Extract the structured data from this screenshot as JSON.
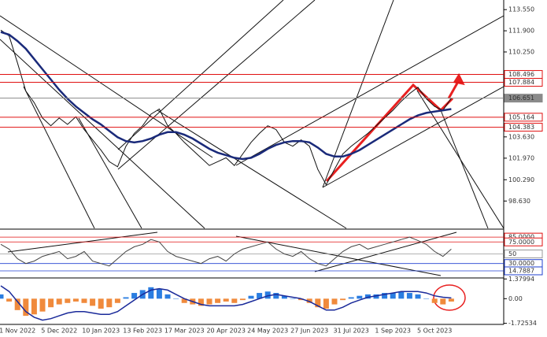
{
  "chart_data": [
    {
      "type": "line",
      "ylim": [
        96.5,
        114.3
      ],
      "grid": false,
      "yticks": [
        {
          "value": 113.55,
          "label": "113.550"
        },
        {
          "value": 111.9,
          "label": "111.900"
        },
        {
          "value": 110.25,
          "label": "110.250"
        },
        {
          "value": 103.63,
          "label": "103.630"
        },
        {
          "value": 101.97,
          "label": "101.970"
        },
        {
          "value": 100.29,
          "label": "100.290"
        },
        {
          "value": 98.63,
          "label": "98.630"
        }
      ],
      "levels": [
        {
          "value": 108.496,
          "color": "#e01010"
        },
        {
          "value": 107.884,
          "color": "#e01010"
        },
        {
          "value": 106.651,
          "color": "#8a8a8a"
        },
        {
          "value": 105.164,
          "color": "#e01010"
        },
        {
          "value": 104.383,
          "color": "#e01010"
        }
      ],
      "series": [
        {
          "color": "#111111",
          "width": 1,
          "values": [
            111.95,
            111.5,
            109.4,
            107.2,
            106.3,
            105.1,
            104.5,
            105.1,
            104.6,
            105.2,
            104.2,
            103.4,
            102.6,
            101.7,
            101.3,
            102.9,
            103.9,
            104.5,
            105.4,
            105.8,
            104.5,
            103.9,
            103.2,
            102.6,
            102.0,
            101.4,
            101.7,
            102.0,
            101.4,
            102.3,
            103.2,
            103.9,
            104.5,
            104.2,
            103.2,
            102.9,
            103.4,
            102.9,
            101.1,
            99.9,
            101.1,
            102.3,
            102.9,
            103.4,
            103.9,
            104.5,
            105.1,
            105.7,
            106.4,
            107.0,
            107.5,
            106.6,
            106.0,
            105.7,
            106.65
          ]
        },
        {
          "color": "#1a2a7a",
          "width": 2.5,
          "values": [
            111.8,
            111.6,
            111.1,
            110.5,
            109.7,
            108.9,
            108.1,
            107.3,
            106.6,
            106.0,
            105.5,
            105.0,
            104.6,
            104.1,
            103.6,
            103.3,
            103.2,
            103.3,
            103.5,
            103.8,
            104.0,
            104.0,
            103.8,
            103.5,
            103.1,
            102.7,
            102.4,
            102.2,
            102.0,
            101.9,
            102.0,
            102.3,
            102.7,
            103.0,
            103.2,
            103.3,
            103.3,
            103.2,
            102.8,
            102.3,
            102.1,
            102.1,
            102.3,
            102.6,
            103.0,
            103.4,
            103.8,
            104.2,
            104.6,
            105.0,
            105.3,
            105.5,
            105.6,
            105.7,
            105.8
          ]
        }
      ]
    },
    {
      "type": "line",
      "ylim": [
        0,
        100
      ],
      "yticks": [
        {
          "value": 85,
          "label": "85.0000"
        },
        {
          "value": 75,
          "label": "75.0000"
        },
        50,
        {
          "value": 30,
          "label": "30.0000"
        },
        14.7887
      ],
      "tick_colors": [
        "#e01010",
        "#e01010",
        "#999999",
        "#2040d0",
        "#2040d0"
      ],
      "series": [
        {
          "color": "#444444",
          "width": 1,
          "values": [
            70,
            60,
            40,
            30,
            35,
            45,
            50,
            55,
            40,
            45,
            55,
            35,
            30,
            25,
            40,
            55,
            65,
            70,
            80,
            75,
            55,
            45,
            40,
            35,
            30,
            40,
            45,
            35,
            50,
            60,
            65,
            70,
            75,
            60,
            50,
            45,
            55,
            40,
            30,
            25,
            40,
            55,
            65,
            70,
            60,
            65,
            70,
            75,
            80,
            85,
            78,
            70,
            55,
            45,
            60
          ]
        }
      ]
    },
    {
      "type": "macd",
      "ylim": [
        -1.8,
        1.45
      ],
      "yticks": [
        1.37994,
        {
          "value": 0,
          "label": "0.00"
        },
        -1.72534
      ],
      "categories": [
        null,
        null,
        "1 Nov 2022",
        null,
        null,
        null,
        null,
        "5 Dec 2022",
        null,
        null,
        null,
        null,
        "10 Jan 2023",
        null,
        null,
        null,
        null,
        "13 Feb 2023",
        null,
        null,
        null,
        null,
        "17 Mar 2023",
        null,
        null,
        null,
        null,
        "20 Apr 2023",
        null,
        null,
        null,
        null,
        "24 May 2023",
        null,
        null,
        null,
        null,
        "27 Jun 2023",
        null,
        null,
        null,
        null,
        "31 Jul 2023",
        null,
        null,
        null,
        null,
        "1 Sep 2023",
        null,
        null,
        null,
        null,
        "5 Oct 2023",
        null,
        null
      ],
      "positive_color": "#2a7de1",
      "negative_color": "#f08a3c",
      "histogram": [
        0.3,
        -0.2,
        -0.8,
        -1.2,
        -1.1,
        -0.9,
        -0.6,
        -0.4,
        -0.3,
        -0.2,
        -0.3,
        -0.5,
        -0.7,
        -0.6,
        -0.3,
        0.1,
        0.4,
        0.6,
        0.8,
        0.7,
        0.3,
        0,
        -0.3,
        -0.4,
        -0.5,
        -0.4,
        -0.3,
        -0.2,
        -0.3,
        -0.1,
        0.2,
        0.4,
        0.5,
        0.4,
        0.2,
        0,
        -0.1,
        -0.3,
        -0.6,
        -0.7,
        -0.4,
        -0.1,
        0.1,
        0.2,
        0.3,
        0.3,
        0.4,
        0.4,
        0.5,
        0.4,
        0.3,
        0,
        -0.3,
        -0.4,
        -0.2
      ],
      "series": [
        {
          "color": "#1a2a9a",
          "width": 1.5,
          "values": [
            0.9,
            0.5,
            -0.2,
            -0.9,
            -1.3,
            -1.5,
            -1.4,
            -1.2,
            -1.0,
            -0.9,
            -0.9,
            -1.0,
            -1.1,
            -1.1,
            -0.9,
            -0.5,
            -0.1,
            0.3,
            0.6,
            0.7,
            0.6,
            0.3,
            0,
            -0.2,
            -0.4,
            -0.5,
            -0.5,
            -0.5,
            -0.5,
            -0.4,
            -0.2,
            0,
            0.2,
            0.3,
            0.2,
            0.1,
            0,
            -0.2,
            -0.5,
            -0.8,
            -0.8,
            -0.6,
            -0.3,
            -0.1,
            0.1,
            0.2,
            0.3,
            0.4,
            0.5,
            0.5,
            0.5,
            0.4,
            0.2,
            0.1,
            0.05
          ]
        }
      ]
    }
  ]
}
